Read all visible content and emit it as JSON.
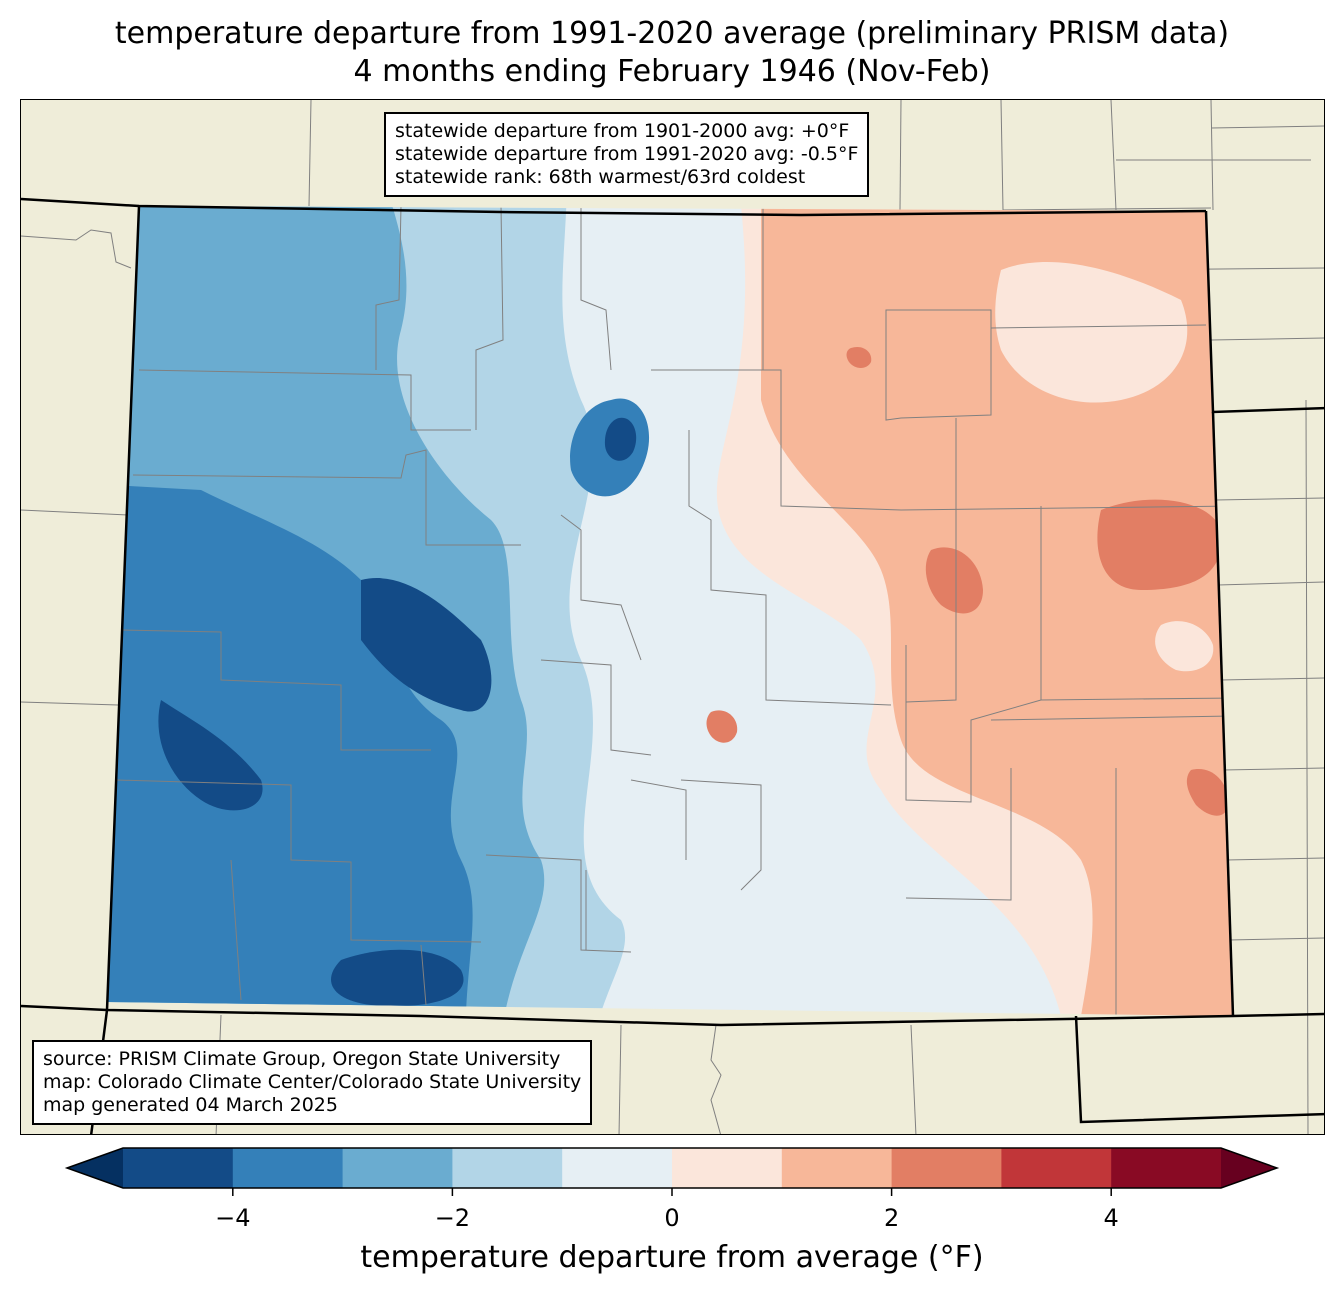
{
  "title": {
    "line1": "temperature departure from 1991-2020 average (preliminary PRISM data)",
    "line2": "4 months ending February 1946 (Nov-Feb)"
  },
  "stats": {
    "line1": "statewide departure from 1901-2000 avg: +0°F",
    "line2": "statewide departure from 1991-2020 avg: -0.5°F",
    "line3": "statewide rank: 68th warmest/63rd coldest"
  },
  "source": {
    "line1": "source: PRISM Climate Group, Oregon State University",
    "line2": "map: Colorado Climate Center/Colorado State University",
    "line3": "map generated 04 March 2025"
  },
  "colorbar": {
    "label": "temperature departure from average (°F)",
    "range": [
      -5,
      5
    ],
    "bounds": [
      -5,
      -4,
      -3,
      -2,
      -1,
      0,
      1,
      2,
      3,
      4,
      5
    ],
    "colors": [
      "#134b87",
      "#3480b9",
      "#6aacd0",
      "#b2d5e7",
      "#e6eff4",
      "#fbe6db",
      "#f7b799",
      "#e27e64",
      "#c13639",
      "#890a24"
    ],
    "under_color": "#053061",
    "over_color": "#67001f",
    "ticks": [
      "−4",
      "−2",
      "0",
      "2",
      "4"
    ],
    "tick_values": [
      -4,
      -2,
      0,
      2,
      4
    ]
  },
  "map": {
    "background_color": "#efedd9",
    "state_border_color": "#000000",
    "county_border_color": "#808080"
  }
}
